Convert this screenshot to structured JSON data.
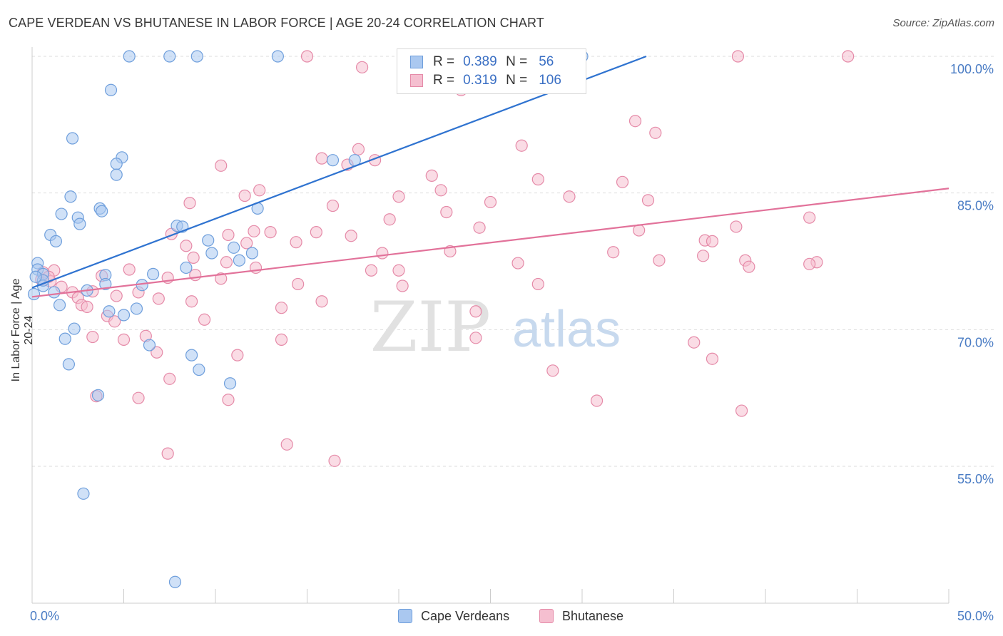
{
  "title": "CAPE VERDEAN VS BHUTANESE IN LABOR FORCE | AGE 20-24 CORRELATION CHART",
  "source": "Source: ZipAtlas.com",
  "watermark": {
    "zip": "ZIP",
    "atlas": "atlas"
  },
  "colors": {
    "blue_fill": "#aac8f0",
    "blue_stroke": "#6f9fdc",
    "blue_line": "#2f73d0",
    "pink_fill": "#f5bfd0",
    "pink_stroke": "#e58aa8",
    "pink_line": "#e2729a",
    "axis_label": "#4a7cc4",
    "grid": "#dddddd"
  },
  "legend": {
    "rows": [
      {
        "r_label": "R =",
        "r_value": "0.389",
        "n_label": "N =",
        "n_value": "56",
        "series": "blue"
      },
      {
        "r_label": "R =",
        "r_value": "0.319",
        "n_label": "N =",
        "n_value": "106",
        "series": "pink"
      }
    ]
  },
  "bottom_legend": [
    {
      "label": "Cape Verdeans",
      "series": "blue"
    },
    {
      "label": "Bhutanese",
      "series": "pink"
    }
  ],
  "chart_data": {
    "type": "scatter",
    "xlabel": "",
    "ylabel": "In Labor Force | Age 20-24",
    "xlim": [
      0,
      50
    ],
    "ylim": [
      40,
      102
    ],
    "x_tick_labels": [
      {
        "value": 0,
        "label": "0.0%"
      },
      {
        "value": 50,
        "label": "50.0%"
      }
    ],
    "y_tick_labels": [
      {
        "value": 100,
        "label": "100.0%"
      },
      {
        "value": 85,
        "label": "85.0%"
      },
      {
        "value": 70,
        "label": "70.0%"
      },
      {
        "value": 55,
        "label": "55.0%"
      }
    ],
    "grid": true,
    "series": [
      {
        "name": "Cape Verdeans",
        "color": "blue",
        "trend": {
          "x": [
            0,
            33.5
          ],
          "y": [
            74.6,
            100.0
          ]
        },
        "points": [
          [
            5.3,
            100
          ],
          [
            7.5,
            100
          ],
          [
            9.0,
            100
          ],
          [
            13.4,
            100
          ],
          [
            30.0,
            100
          ],
          [
            4.3,
            96.3
          ],
          [
            2.2,
            91.0
          ],
          [
            4.9,
            88.9
          ],
          [
            4.6,
            88.2
          ],
          [
            4.6,
            87.0
          ],
          [
            16.4,
            88.6
          ],
          [
            17.6,
            88.6
          ],
          [
            2.1,
            84.6
          ],
          [
            3.7,
            83.3
          ],
          [
            1.6,
            82.7
          ],
          [
            3.8,
            83.0
          ],
          [
            2.5,
            82.3
          ],
          [
            2.6,
            81.6
          ],
          [
            7.9,
            81.4
          ],
          [
            8.2,
            81.3
          ],
          [
            12.3,
            83.3
          ],
          [
            1.0,
            80.4
          ],
          [
            1.3,
            79.7
          ],
          [
            9.6,
            79.8
          ],
          [
            9.8,
            78.4
          ],
          [
            11.3,
            77.6
          ],
          [
            12.0,
            78.4
          ],
          [
            0.3,
            77.3
          ],
          [
            0.3,
            76.6
          ],
          [
            0.6,
            76.1
          ],
          [
            4.0,
            76.0
          ],
          [
            6.6,
            76.1
          ],
          [
            8.4,
            76.8
          ],
          [
            0.6,
            74.8
          ],
          [
            1.2,
            74.1
          ],
          [
            0.1,
            73.9
          ],
          [
            3.0,
            74.3
          ],
          [
            4.0,
            75.0
          ],
          [
            6.0,
            74.9
          ],
          [
            1.5,
            72.7
          ],
          [
            4.2,
            72.0
          ],
          [
            5.0,
            71.6
          ],
          [
            5.7,
            72.3
          ],
          [
            1.8,
            69.0
          ],
          [
            2.3,
            70.1
          ],
          [
            6.4,
            68.3
          ],
          [
            8.7,
            67.2
          ],
          [
            2.0,
            66.2
          ],
          [
            9.1,
            65.6
          ],
          [
            10.8,
            64.1
          ],
          [
            3.6,
            62.8
          ],
          [
            2.8,
            52.0
          ],
          [
            7.8,
            42.3
          ],
          [
            0.6,
            75.4
          ],
          [
            0.2,
            75.8
          ],
          [
            11.0,
            79.0
          ]
        ]
      },
      {
        "name": "Bhutanese",
        "color": "pink",
        "trend": {
          "x": [
            0,
            50
          ],
          "y": [
            73.6,
            85.5
          ]
        },
        "points": [
          [
            15.0,
            100
          ],
          [
            25.6,
            100
          ],
          [
            38.5,
            100
          ],
          [
            44.5,
            100
          ],
          [
            18.0,
            98.8
          ],
          [
            23.4,
            96.3
          ],
          [
            32.9,
            92.9
          ],
          [
            34.0,
            91.6
          ],
          [
            26.7,
            90.2
          ],
          [
            17.8,
            89.8
          ],
          [
            15.8,
            88.8
          ],
          [
            17.2,
            88.1
          ],
          [
            18.7,
            88.6
          ],
          [
            10.3,
            88.0
          ],
          [
            21.8,
            86.9
          ],
          [
            27.6,
            86.5
          ],
          [
            32.2,
            86.2
          ],
          [
            12.4,
            85.3
          ],
          [
            11.6,
            84.7
          ],
          [
            20.0,
            84.6
          ],
          [
            22.3,
            85.3
          ],
          [
            25.0,
            84.0
          ],
          [
            29.3,
            84.6
          ],
          [
            33.6,
            84.2
          ],
          [
            8.6,
            83.9
          ],
          [
            16.4,
            83.6
          ],
          [
            22.6,
            82.9
          ],
          [
            19.5,
            82.1
          ],
          [
            7.6,
            80.5
          ],
          [
            10.7,
            80.4
          ],
          [
            12.1,
            80.8
          ],
          [
            13.0,
            80.7
          ],
          [
            15.5,
            80.7
          ],
          [
            17.4,
            80.3
          ],
          [
            24.4,
            81.2
          ],
          [
            38.4,
            81.3
          ],
          [
            42.4,
            82.3
          ],
          [
            33.1,
            80.9
          ],
          [
            36.7,
            79.8
          ],
          [
            37.1,
            79.7
          ],
          [
            11.7,
            79.5
          ],
          [
            8.4,
            79.2
          ],
          [
            14.4,
            79.6
          ],
          [
            19.1,
            78.4
          ],
          [
            22.8,
            78.6
          ],
          [
            31.7,
            78.5
          ],
          [
            8.8,
            77.9
          ],
          [
            10.6,
            77.4
          ],
          [
            12.2,
            76.8
          ],
          [
            18.5,
            76.5
          ],
          [
            20.0,
            76.5
          ],
          [
            26.5,
            77.3
          ],
          [
            34.2,
            77.6
          ],
          [
            36.6,
            78.1
          ],
          [
            38.9,
            77.6
          ],
          [
            39.1,
            76.9
          ],
          [
            42.8,
            77.4
          ],
          [
            42.4,
            77.2
          ],
          [
            1.2,
            76.5
          ],
          [
            3.8,
            75.9
          ],
          [
            5.3,
            76.6
          ],
          [
            7.4,
            75.7
          ],
          [
            8.9,
            76.0
          ],
          [
            10.3,
            75.6
          ],
          [
            14.5,
            75.0
          ],
          [
            20.2,
            74.8
          ],
          [
            27.6,
            75.0
          ],
          [
            0.5,
            75.5
          ],
          [
            1.0,
            75.3
          ],
          [
            1.6,
            74.7
          ],
          [
            2.2,
            74.1
          ],
          [
            2.5,
            73.5
          ],
          [
            3.3,
            74.2
          ],
          [
            4.6,
            73.7
          ],
          [
            5.8,
            74.1
          ],
          [
            6.9,
            73.4
          ],
          [
            8.7,
            73.1
          ],
          [
            13.6,
            72.4
          ],
          [
            15.8,
            73.1
          ],
          [
            2.7,
            72.7
          ],
          [
            3.0,
            72.5
          ],
          [
            4.1,
            71.5
          ],
          [
            9.4,
            71.1
          ],
          [
            24.2,
            72.0
          ],
          [
            3.3,
            69.2
          ],
          [
            5.0,
            68.9
          ],
          [
            6.2,
            69.3
          ],
          [
            13.6,
            68.9
          ],
          [
            24.2,
            69.1
          ],
          [
            36.1,
            68.6
          ],
          [
            28.4,
            65.5
          ],
          [
            37.1,
            66.8
          ],
          [
            6.8,
            67.5
          ],
          [
            11.2,
            67.2
          ],
          [
            3.5,
            62.7
          ],
          [
            5.8,
            62.5
          ],
          [
            7.5,
            64.6
          ],
          [
            10.7,
            62.3
          ],
          [
            30.8,
            62.2
          ],
          [
            38.7,
            61.1
          ],
          [
            7.4,
            56.4
          ],
          [
            13.9,
            57.4
          ],
          [
            16.5,
            55.6
          ],
          [
            0.6,
            76.3
          ],
          [
            4.5,
            70.9
          ],
          [
            0.9,
            75.8
          ]
        ]
      }
    ]
  }
}
